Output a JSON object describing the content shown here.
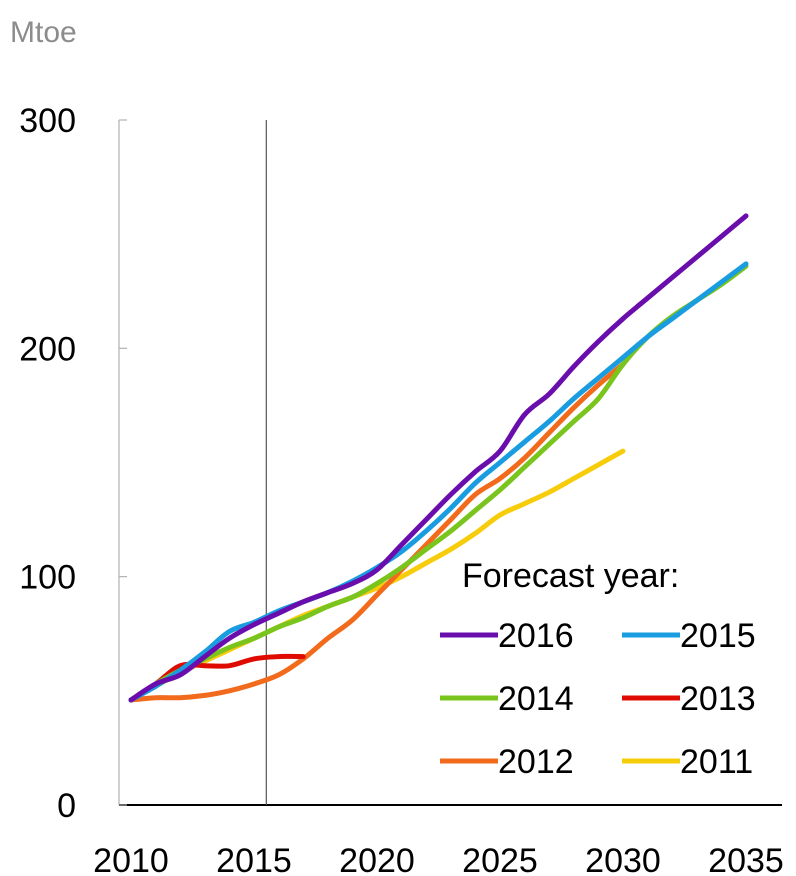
{
  "chart_data": {
    "type": "line",
    "unit_label": "Mtoe",
    "xlim": [
      2010,
      2035
    ],
    "ylim": [
      0,
      300
    ],
    "x_ticks": [
      "2010",
      "2015",
      "2020",
      "2025",
      "2030",
      "2035"
    ],
    "y_ticks": [
      "0",
      "100",
      "200",
      "300"
    ],
    "reference_line_x": 2015.5,
    "legend_title": "Forecast year:",
    "grid": false,
    "series": [
      {
        "name": "2016",
        "color": "#6a0dad",
        "x": [
          2010,
          2011,
          2012,
          2013,
          2014,
          2015,
          2016,
          2017,
          2018,
          2019,
          2020,
          2021,
          2022,
          2023,
          2024,
          2025,
          2026,
          2027,
          2028,
          2029,
          2030,
          2031,
          2032,
          2033,
          2034,
          2035
        ],
        "y": [
          46,
          53,
          57,
          65,
          73,
          79,
          84,
          89,
          93,
          97,
          103,
          114,
          125,
          136,
          146,
          155,
          171,
          180,
          192,
          203,
          213,
          222,
          231,
          240,
          249,
          258
        ]
      },
      {
        "name": "2015",
        "color": "#1a9de0",
        "x": [
          2010,
          2011,
          2012,
          2013,
          2014,
          2015,
          2016,
          2017,
          2018,
          2019,
          2020,
          2021,
          2022,
          2023,
          2024,
          2025,
          2026,
          2027,
          2028,
          2029,
          2030,
          2031,
          2032,
          2033,
          2034,
          2035
        ],
        "y": [
          46,
          52,
          59,
          67,
          76,
          80,
          85,
          89,
          93,
          98,
          104,
          111,
          120,
          130,
          141,
          150,
          159,
          168,
          178,
          187,
          196,
          205,
          213,
          221,
          229,
          237
        ]
      },
      {
        "name": "2014",
        "color": "#7ac41e",
        "x": [
          2010,
          2011,
          2012,
          2013,
          2014,
          2015,
          2016,
          2017,
          2018,
          2019,
          2020,
          2021,
          2022,
          2023,
          2024,
          2025,
          2026,
          2027,
          2028,
          2029,
          2030,
          2031,
          2032,
          2033,
          2034,
          2035
        ],
        "y": [
          46,
          53,
          59,
          64,
          69,
          73,
          78,
          82,
          87,
          91,
          97,
          104,
          112,
          120,
          129,
          138,
          148,
          158,
          168,
          178,
          193,
          205,
          214,
          221,
          228,
          236
        ]
      },
      {
        "name": "2013",
        "color": "#e00b00",
        "x": [
          2010,
          2011,
          2012,
          2013,
          2014,
          2015,
          2016,
          2017
        ],
        "y": [
          46,
          53,
          61,
          61,
          61,
          64,
          65,
          65
        ]
      },
      {
        "name": "2012",
        "color": "#f26b1d",
        "x": [
          2010,
          2011,
          2012,
          2013,
          2014,
          2015,
          2016,
          2017,
          2018,
          2019,
          2020,
          2021,
          2022,
          2023,
          2024,
          2025,
          2026,
          2027,
          2028,
          2029,
          2030
        ],
        "y": [
          46,
          47,
          47,
          48,
          50,
          53,
          57,
          64,
          73,
          81,
          92,
          103,
          114,
          125,
          136,
          143,
          152,
          163,
          174,
          184,
          193
        ]
      },
      {
        "name": "2011",
        "color": "#f7cc0a",
        "x": [
          2010,
          2011,
          2012,
          2013,
          2014,
          2015,
          2016,
          2017,
          2018,
          2019,
          2020,
          2021,
          2022,
          2023,
          2024,
          2025,
          2026,
          2027,
          2028,
          2029,
          2030
        ],
        "y": [
          46,
          52,
          58,
          63,
          68,
          73,
          78,
          83,
          87,
          91,
          95,
          100,
          106,
          112,
          119,
          127,
          132,
          137,
          143,
          149,
          155
        ]
      }
    ]
  }
}
